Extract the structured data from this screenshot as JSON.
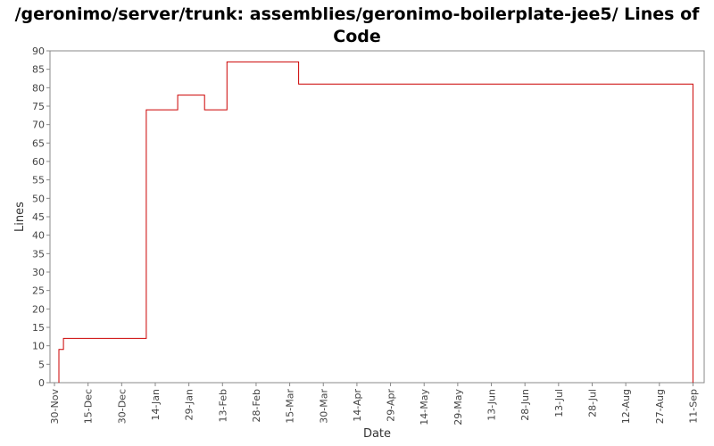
{
  "chart_data": {
    "type": "line",
    "title": "/geronimo/server/trunk: assemblies/geronimo-boilerplate-jee5/ Lines of Code",
    "xlabel": "Date",
    "ylabel": "Lines",
    "ylim": [
      0,
      90
    ],
    "yticks": [
      0,
      5,
      10,
      15,
      20,
      25,
      30,
      35,
      40,
      45,
      50,
      55,
      60,
      65,
      70,
      75,
      80,
      85,
      90
    ],
    "xticks": [
      "30-Nov",
      "15-Dec",
      "30-Dec",
      "14-Jan",
      "29-Jan",
      "13-Feb",
      "28-Feb",
      "15-Mar",
      "30-Mar",
      "14-Apr",
      "29-Apr",
      "14-May",
      "29-May",
      "13-Jun",
      "28-Jun",
      "13-Jul",
      "28-Jul",
      "12-Aug",
      "27-Aug",
      "11-Sep"
    ],
    "xlim": [
      "28-Nov",
      "16-Sep"
    ],
    "grid": false,
    "legend": "none",
    "line_color": "#cc0000",
    "series": [
      {
        "step": true,
        "x": [
          "2-Dec",
          "3-Dec",
          "4-Dec",
          "10-Jan",
          "24-Jan",
          "5-Feb",
          "15-Feb",
          "19-Mar",
          "11-Sep",
          "11-Sep"
        ],
        "y": [
          9,
          9,
          12,
          74,
          78,
          74,
          87,
          81,
          81,
          0
        ]
      }
    ]
  }
}
